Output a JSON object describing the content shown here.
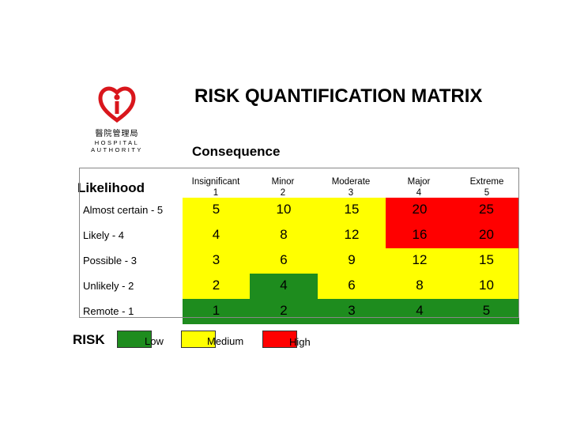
{
  "logo": {
    "zh_text": "醫院管理局",
    "en_line1": "HOSPITAL",
    "en_line2": "AUTHORITY",
    "color": "#d9161c"
  },
  "title": "RISK QUANTIFICATION MATRIX",
  "consequence_label": "Consequence",
  "likelihood_label": "Likelihood",
  "columns": [
    {
      "name": "Insignificant",
      "score": "1"
    },
    {
      "name": "Minor",
      "score": "2"
    },
    {
      "name": "Moderate",
      "score": "3"
    },
    {
      "name": "Major",
      "score": "4"
    },
    {
      "name": "Extreme",
      "score": "5"
    }
  ],
  "rows": [
    {
      "label": "Almost certain - 5",
      "values": [
        "5",
        "10",
        "15",
        "20",
        "25"
      ],
      "levels": [
        "medium",
        "medium",
        "medium",
        "high",
        "high"
      ]
    },
    {
      "label": "Likely - 4",
      "values": [
        "4",
        "8",
        "12",
        "16",
        "20"
      ],
      "levels": [
        "medium",
        "medium",
        "medium",
        "high",
        "high"
      ]
    },
    {
      "label": "Possible - 3",
      "values": [
        "3",
        "6",
        "9",
        "12",
        "15"
      ],
      "levels": [
        "medium",
        "medium",
        "medium",
        "medium",
        "medium"
      ]
    },
    {
      "label": "Unlikely - 2",
      "values": [
        "2",
        "4",
        "6",
        "8",
        "10"
      ],
      "levels": [
        "medium",
        "low",
        "medium",
        "medium",
        "medium"
      ]
    },
    {
      "label": "Remote - 1",
      "values": [
        "1",
        "2",
        "3",
        "4",
        "5"
      ],
      "levels": [
        "low",
        "low",
        "low",
        "low",
        "low"
      ]
    }
  ],
  "legend": {
    "title": "RISK",
    "items": [
      {
        "label": "Low",
        "color": "#1e8c1e"
      },
      {
        "label": "Medium",
        "color": "#ffff00"
      },
      {
        "label": "High",
        "color": "#ff0000"
      }
    ]
  }
}
